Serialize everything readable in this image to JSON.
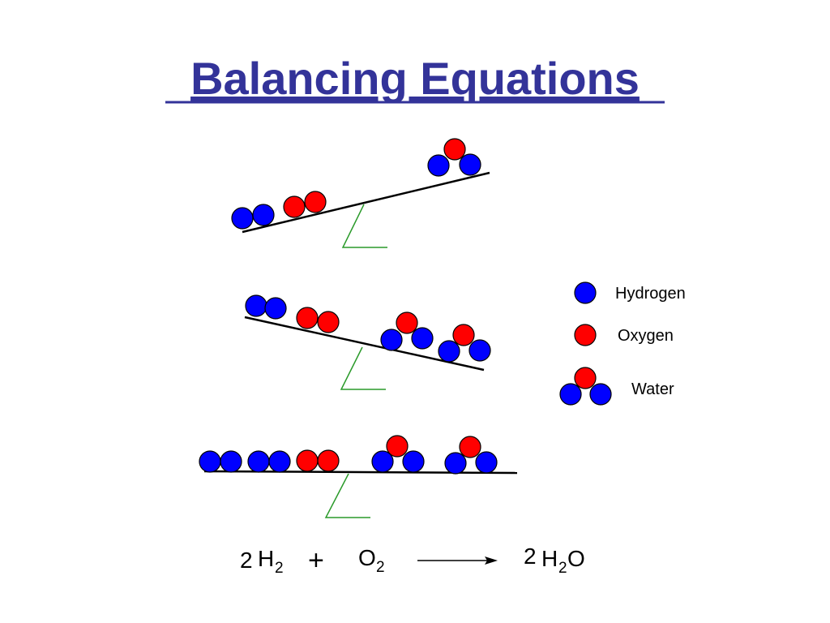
{
  "title": "Balancing Equations",
  "legend": [
    {
      "label": "Hydrogen"
    },
    {
      "label": "Oxygen"
    },
    {
      "label": "Water"
    }
  ],
  "equation": {
    "reactant1": {
      "coefficient": "2",
      "element": "H",
      "subscript": "2"
    },
    "plus": "+",
    "reactant2": {
      "element": "O",
      "subscript": "2"
    },
    "product": {
      "coefficient": "2",
      "element": "H",
      "subscript": "2",
      "tail": "O"
    }
  }
}
